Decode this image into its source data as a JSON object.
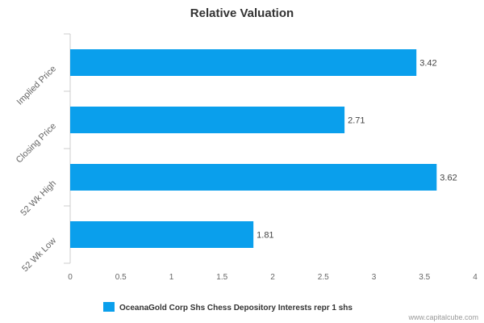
{
  "chart_data": {
    "type": "bar",
    "orientation": "horizontal",
    "title": "Relative Valuation",
    "categories": [
      "Implied Price",
      "Closing Price",
      "52 Wk High",
      "52 Wk Low"
    ],
    "series": [
      {
        "name": "OceanaGold Corp Shs Chess Depository Interests repr 1 shs",
        "values": [
          3.42,
          2.71,
          3.62,
          1.81
        ],
        "data_labels": [
          "3.42",
          "2.71",
          "3.62",
          "1.81"
        ],
        "color": "#0a9fec"
      }
    ],
    "xlim": [
      0,
      4
    ],
    "x_ticks": [
      0,
      0.5,
      1,
      1.5,
      2,
      2.5,
      3,
      3.5,
      4
    ],
    "x_tick_labels": [
      "0",
      "0.5",
      "1",
      "1.5",
      "2",
      "2.5",
      "3",
      "3.5",
      "4"
    ],
    "xlabel": "",
    "ylabel": "",
    "grid": false,
    "legend_position": "bottom-center"
  },
  "credit": "www.capitalcube.com",
  "colors": {
    "bar": "#0a9fec",
    "axis": "#cccccc",
    "text": "#666666"
  }
}
